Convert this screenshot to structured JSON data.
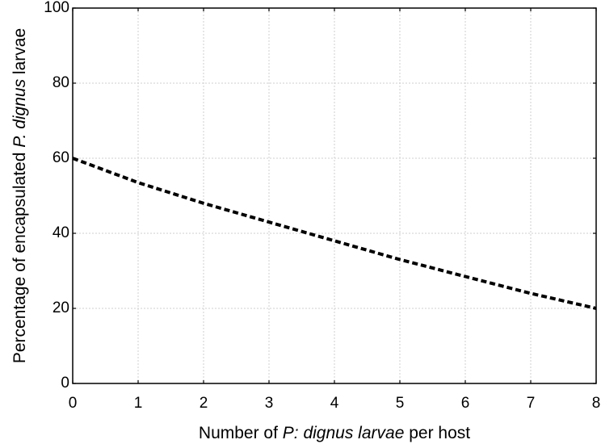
{
  "chart_data": {
    "type": "line",
    "title": "",
    "xlabel": "Number of P: dignus larvae per host",
    "xlabel_parts": [
      {
        "text": "Number of ",
        "italic": false
      },
      {
        "text": "P: dignus larvae",
        "italic": true
      },
      {
        "text": " per host",
        "italic": false
      }
    ],
    "ylabel": "Percentage of encapsulated P. dignus larvae",
    "ylabel_parts": [
      {
        "text": "Percentage of encapsulated ",
        "italic": false
      },
      {
        "text": "P. dignus",
        "italic": true
      },
      {
        "text": " larvae",
        "italic": false
      }
    ],
    "xlim": [
      0,
      8
    ],
    "ylim": [
      0,
      100
    ],
    "xticks": [
      0,
      1,
      2,
      3,
      4,
      5,
      6,
      7,
      8
    ],
    "yticks": [
      0,
      20,
      40,
      60,
      80,
      100
    ],
    "grid": true,
    "legend": "none",
    "series": [
      {
        "line_style": "dashed",
        "color": "#000000",
        "x": [
          0,
          1,
          2,
          3,
          4,
          5,
          6,
          7,
          8
        ],
        "y": [
          60,
          53.5,
          48,
          43,
          38,
          33,
          28.5,
          24,
          20
        ]
      }
    ]
  }
}
